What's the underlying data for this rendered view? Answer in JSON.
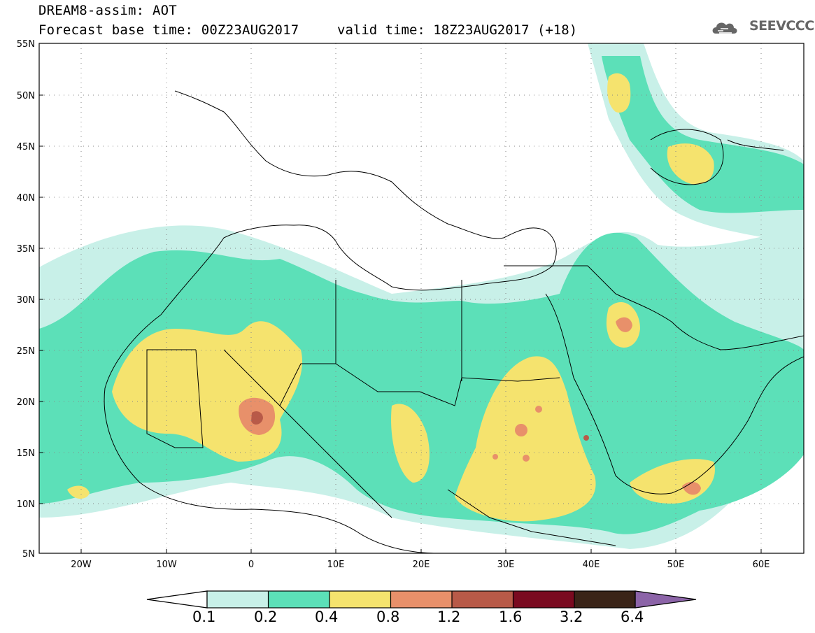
{
  "header": {
    "line1": "DREAM8-assim: AOT",
    "line2": "Forecast base time: 00Z23AUG2017",
    "valid": "valid time: 18Z23AUG2017 (+18)",
    "logo_text": "SEEVCCC"
  },
  "map": {
    "lon_range": [
      -25,
      65
    ],
    "lat_range": [
      5,
      55
    ],
    "lat_labels": [
      "55N",
      "50N",
      "45N",
      "40N",
      "35N",
      "30N",
      "25N",
      "20N",
      "15N",
      "10N",
      "5N"
    ],
    "lon_labels": [
      "20W",
      "10W",
      "0",
      "10E",
      "20E",
      "30E",
      "40E",
      "50E",
      "60E"
    ]
  },
  "colorbar": {
    "labels": [
      "0.1",
      "0.2",
      "0.4",
      "0.8",
      "1.2",
      "1.6",
      "3.2",
      "6.4"
    ],
    "colors": {
      "c1": "#c8f0e8",
      "c2": "#5ce0b8",
      "c3": "#f5e36e",
      "c4": "#e8906a",
      "c5": "#b85a48",
      "c6": "#7a0a20",
      "c7": "#3a2418",
      "c8": "#8c64a8"
    }
  }
}
